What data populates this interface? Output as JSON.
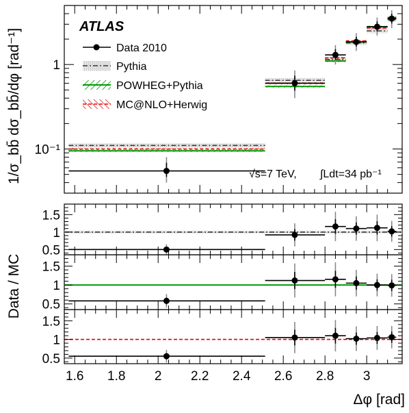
{
  "chart_data": [
    {
      "type": "scatter",
      "panel": "main",
      "experiment_label": "ATLAS",
      "annotation": {
        "energy": "√s=7 TeV,",
        "luminosity": "∫Ldt=34 pb⁻¹"
      },
      "ylabel": "1/σ_bb̄ dσ_bb̄/dφ [rad⁻¹]",
      "yscale": "log",
      "ylim": [
        0.03,
        5
      ],
      "xlim": [
        1.55,
        3.17
      ],
      "y_ticks": [
        "10⁻¹",
        "1"
      ],
      "legend_placement": "top-left",
      "legend": [
        "Data 2010",
        "Pythia",
        "POWHEG+Pythia",
        "MC@NLO+Herwig"
      ],
      "bins": [
        [
          1.571,
          2.513
        ],
        [
          2.513,
          2.8
        ],
        [
          2.8,
          2.9
        ],
        [
          2.9,
          3.0
        ],
        [
          3.0,
          3.1
        ],
        [
          3.1,
          3.1416
        ]
      ],
      "series": [
        {
          "name": "Data 2010",
          "x": [
            2.04,
            2.655,
            2.85,
            2.95,
            3.05,
            3.12
          ],
          "y": [
            0.055,
            0.6,
            1.3,
            1.85,
            2.8,
            3.5
          ],
          "yerr_low": [
            0.015,
            0.2,
            0.3,
            0.4,
            0.6,
            0.8
          ],
          "yerr_high": [
            0.025,
            0.25,
            0.4,
            0.5,
            0.8,
            0.9
          ]
        },
        {
          "name": "Pythia",
          "y": [
            0.11,
            0.65,
            1.15,
            1.8,
            2.5,
            3.4
          ]
        },
        {
          "name": "POWHEG+Pythia",
          "y": [
            0.095,
            0.55,
            1.1,
            1.85,
            2.8,
            3.6
          ]
        },
        {
          "name": "MC@NLO+Herwig",
          "y": [
            0.1,
            0.6,
            1.2,
            1.9,
            2.7,
            3.5
          ]
        }
      ]
    },
    {
      "type": "scatter",
      "panel": "ratio-pythia",
      "ylabel": "Data / MC",
      "ylim": [
        0.35,
        1.8
      ],
      "y_ticks": [
        "0.5",
        "1",
        "1.5"
      ],
      "reference": "Pythia",
      "bins": [
        [
          1.571,
          2.513
        ],
        [
          2.513,
          2.8
        ],
        [
          2.8,
          2.9
        ],
        [
          2.9,
          3.0
        ],
        [
          3.0,
          3.1
        ],
        [
          3.1,
          3.1416
        ]
      ],
      "x": [
        2.04,
        2.655,
        2.85,
        2.95,
        3.05,
        3.12
      ],
      "y": [
        0.5,
        0.92,
        1.16,
        1.1,
        1.12,
        1.02
      ],
      "yerr": [
        0.15,
        0.33,
        0.42,
        0.35,
        0.38,
        0.3
      ]
    },
    {
      "type": "scatter",
      "panel": "ratio-powheg",
      "ylim": [
        0.35,
        1.8
      ],
      "y_ticks": [
        "0.5",
        "1",
        "1.5"
      ],
      "reference": "POWHEG+Pythia",
      "bins": [
        [
          1.571,
          2.513
        ],
        [
          2.513,
          2.8
        ],
        [
          2.8,
          2.9
        ],
        [
          2.9,
          3.0
        ],
        [
          3.0,
          3.1
        ],
        [
          3.1,
          3.1416
        ]
      ],
      "x": [
        2.04,
        2.655,
        2.85,
        2.95,
        3.05,
        3.12
      ],
      "y": [
        0.58,
        1.12,
        1.15,
        1.05,
        1.0,
        0.99
      ],
      "yerr": [
        0.18,
        0.45,
        0.45,
        0.35,
        0.3,
        0.3
      ]
    },
    {
      "type": "scatter",
      "panel": "ratio-mcnlo",
      "ylim": [
        0.35,
        1.8
      ],
      "y_ticks": [
        "0.5",
        "1",
        "1.5"
      ],
      "xlabel": "Δφ [rad]",
      "x_ticks": [
        "1.6",
        "1.8",
        "2",
        "2.2",
        "2.4",
        "2.6",
        "2.8",
        "3"
      ],
      "reference": "MC@NLO+Herwig",
      "bins": [
        [
          1.571,
          2.513
        ],
        [
          2.513,
          2.8
        ],
        [
          2.8,
          2.9
        ],
        [
          2.9,
          3.0
        ],
        [
          3.0,
          3.1
        ],
        [
          3.1,
          3.1416
        ]
      ],
      "x": [
        2.04,
        2.655,
        2.85,
        2.95,
        3.05,
        3.12
      ],
      "y": [
        0.55,
        1.05,
        1.1,
        1.02,
        1.04,
        1.06
      ],
      "yerr": [
        0.17,
        0.42,
        0.42,
        0.33,
        0.32,
        0.3
      ]
    }
  ],
  "colors": {
    "data": "#000000",
    "pythia": "#333333",
    "pythia_band": "#d9d9d9",
    "powheg": "#009900",
    "mcnlo": "#e00000"
  }
}
